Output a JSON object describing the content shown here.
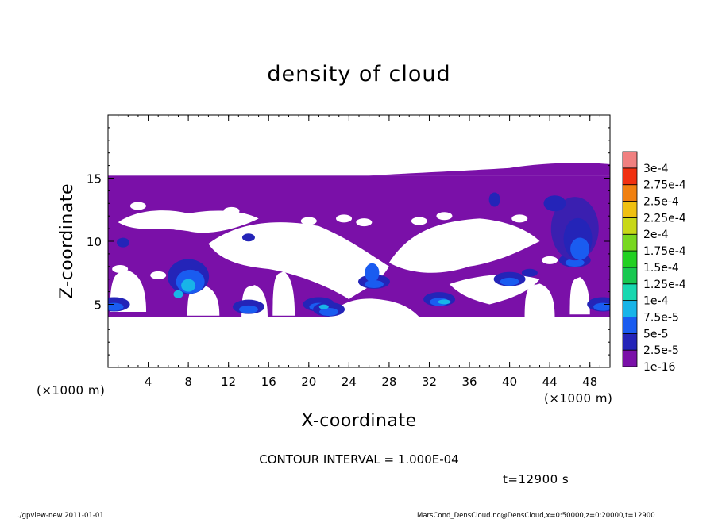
{
  "chart_data": {
    "type": "heatmap",
    "title": "density of cloud",
    "xlabel": "X-coordinate",
    "ylabel": "Z-coordinate",
    "x_unit": "(×1000 m)",
    "y_unit": "(×1000 m)",
    "xlim": [
      0,
      50
    ],
    "ylim": [
      0,
      20
    ],
    "x_ticks": [
      4,
      8,
      12,
      16,
      20,
      24,
      28,
      32,
      36,
      40,
      44,
      48
    ],
    "x_tick_labels": [
      "4",
      "8",
      "12",
      "16",
      "20",
      "24",
      "28",
      "32",
      "36",
      "40",
      "44",
      "48"
    ],
    "y_ticks": [
      5,
      10,
      15
    ],
    "y_tick_labels": [
      "5",
      "10",
      "15"
    ],
    "colorbar": {
      "labels": [
        "1e-16",
        "2.5e-5",
        "5e-5",
        "7.5e-5",
        "1e-4",
        "1.25e-4",
        "1.5e-4",
        "1.75e-4",
        "2e-4",
        "2.25e-4",
        "2.5e-4",
        "2.75e-4",
        "3e-4"
      ],
      "colors": [
        "#7a10a8",
        "#2424b8",
        "#1a5cf0",
        "#18b4e8",
        "#18d8b0",
        "#18c850",
        "#22d022",
        "#78d820",
        "#c8d818",
        "#f0c010",
        "#f08010",
        "#f03010",
        "#f08080"
      ]
    },
    "cloud_layer": {
      "base_km": 4,
      "top_km": 15.2,
      "high_density_cores_x_km": [
        8,
        14,
        21,
        26,
        33,
        40,
        46,
        49
      ]
    },
    "contour_interval_text": "CONTOUR INTERVAL = 1.000E-04",
    "time_text": "t=12900 s"
  },
  "footer": {
    "left": "./gpview-new  2011-01-01",
    "right": "MarsCond_DensCloud.nc@DensCloud,x=0:50000,z=0:20000,t=12900"
  }
}
